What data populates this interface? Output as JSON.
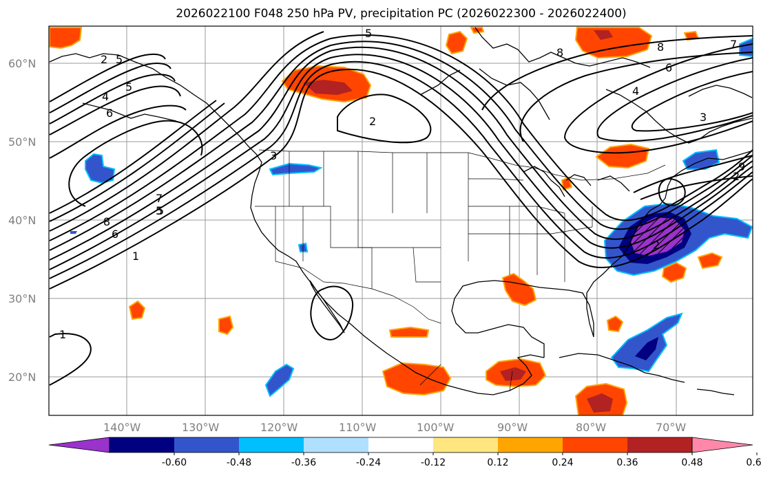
{
  "title": "2026022100 F048 250 hPa PV, precipitation PC (2026022300 - 2026022400)",
  "lat_labels": [
    "60°N",
    "50°N",
    "40°N",
    "30°N",
    "20°N"
  ],
  "lon_labels": [
    "140°W",
    "130°W",
    "120°W",
    "110°W",
    "100°W",
    "90°W",
    "80°W",
    "70°W"
  ],
  "colorbar": {
    "ticks": [
      "-0.60",
      "-0.48",
      "-0.36",
      "-0.24",
      "-0.12",
      "0.12",
      "0.24",
      "0.36",
      "0.48",
      "0.60"
    ],
    "colors": [
      "#9933cc",
      "#000080",
      "#3355cc",
      "#00bfff",
      "#b0e0ff",
      "#ffffff",
      "#ffe680",
      "#ffa500",
      "#ff4500",
      "#b22222",
      "#ff88aa"
    ]
  },
  "contour_labels": [
    "2",
    "5",
    "4",
    "5",
    "6",
    "5",
    "2",
    "5",
    "8",
    "8",
    "7",
    "6",
    "4",
    "3",
    "7",
    "5",
    "8",
    "6",
    "1",
    "2",
    "1",
    "3",
    "2",
    "9"
  ],
  "colors": {
    "grid": "#9a9a9a",
    "contour": "#000000",
    "coast": "#000000"
  }
}
